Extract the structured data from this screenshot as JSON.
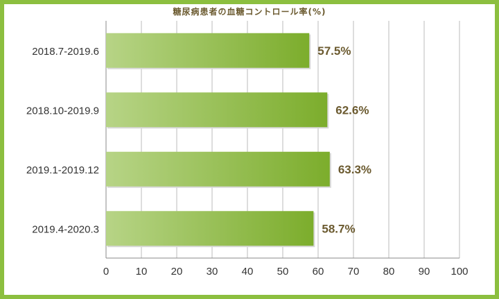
{
  "chart_data": {
    "type": "bar",
    "orientation": "horizontal",
    "title": "糖尿病患者の血糖コントロール率(%)",
    "categories": [
      "2018.7-2019.6",
      "2018.10-2019.9",
      "2019.1-2019.12",
      "2019.4-2020.3"
    ],
    "values": [
      57.5,
      62.6,
      63.3,
      58.7
    ],
    "value_labels": [
      "57.5%",
      "62.6%",
      "63.3%",
      "58.7%"
    ],
    "xlim": [
      0,
      100
    ],
    "x_ticks": [
      0,
      10,
      20,
      30,
      40,
      50,
      60,
      70,
      80,
      90,
      100
    ],
    "x_tick_labels": [
      "0",
      "10",
      "20",
      "30",
      "40",
      "50",
      "60",
      "70",
      "80",
      "90",
      "100"
    ],
    "grid": true,
    "legend": "none",
    "colors": {
      "bar_light": "#b7d486",
      "bar_dark": "#7cad2c",
      "frame": "#8cbf3f",
      "value_text": "#6b5a2f",
      "grid": "#bbbbbb"
    }
  }
}
